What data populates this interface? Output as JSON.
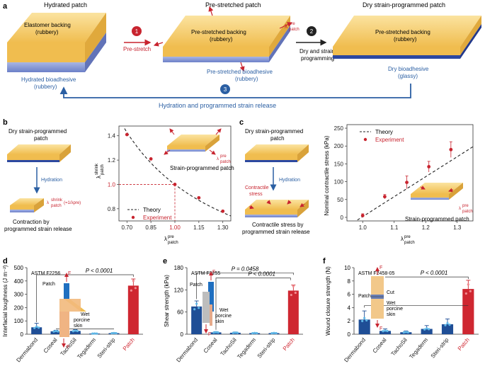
{
  "panel_a": {
    "label": "a",
    "hydrated_title": "Hydrated patch",
    "elastomer_backing": "Elastomer backing",
    "rubbery1": "(rubbery)",
    "hydrated_bioadhesive": "Hydrated bioadhesive",
    "rubbery2": "(rubbery)",
    "step1": "1",
    "prestretch": "Pre-stretch",
    "prestretched_title": "Pre-stretched patch",
    "prestretched_backing": "Pre-stretched backing",
    "rubbery3": "(rubbery)",
    "lambda_pre": "λ",
    "lambda_pre_sup": "pre",
    "lambda_pre_sub": "patch",
    "prestretched_bioadhesive": "Pre-stretched bioadhesive",
    "rubbery4": "(rubbery)",
    "step2": "2",
    "dry_strain": "Dry and strain",
    "programming": "programming",
    "dry_title": "Dry strain-programmed patch",
    "dry_backing": "Pre-stretched backing",
    "rubbery5": "(rubbery)",
    "dry_bioadhesive": "Dry bioadhesive",
    "glassy": "(glassy)",
    "step3": "3",
    "hydration_release": "Hydration and programmed strain release"
  },
  "panel_b": {
    "label": "b",
    "title1": "Dry strain-programmed",
    "title2": "patch",
    "hydration": "Hydration",
    "contraction1": "Contraction by",
    "contraction2": "programmed strain release",
    "inset_label": "Strain-programmed patch",
    "legend_theory": "Theory",
    "legend_experiment": "Experiment"
  },
  "panel_c": {
    "label": "c",
    "title1": "Dry strain-programmed",
    "title2": "patch",
    "hydration": "Hydration",
    "contractile1": "Contractile",
    "contractile2": "stress",
    "caption1": "Contractile stress by",
    "caption2": "programmed strain release",
    "inset_label": "Strain-programmed patch",
    "legend_theory": "Theory",
    "legend_experiment": "Experiment"
  },
  "chart_data": [
    {
      "type": "scatter",
      "panel": "b",
      "xlabel": "λ pre patch",
      "ylabel": "λ shrink patch",
      "xlim": [
        0.65,
        1.35
      ],
      "ylim": [
        0.7,
        1.48
      ],
      "xticks": [
        "0.70",
        "0.85",
        "1.00",
        "1.15",
        "1.30"
      ],
      "yticks": [
        "0.8",
        "1.0",
        "1.2",
        "1.4"
      ],
      "x": [
        0.7,
        0.85,
        1.0,
        1.15,
        1.3
      ],
      "y": [
        1.41,
        1.21,
        1.0,
        0.89,
        0.78
      ],
      "theory": "1/x"
    },
    {
      "type": "scatter",
      "panel": "c",
      "xlabel": "λ pre patch",
      "ylabel": "Nominal contractile stress (kPa)",
      "xlim": [
        0.95,
        1.35
      ],
      "ylim": [
        -10,
        260
      ],
      "xticks": [
        "1.0",
        "1.1",
        "1.2",
        "1.3"
      ],
      "yticks": [
        "0",
        "50",
        "100",
        "150",
        "200",
        "250"
      ],
      "x": [
        1.0,
        1.07,
        1.14,
        1.21,
        1.28
      ],
      "y": [
        5,
        58,
        98,
        142,
        190
      ],
      "err": [
        5,
        6,
        18,
        15,
        22
      ]
    },
    {
      "type": "bar",
      "panel": "d",
      "title": "ASTM F2256",
      "ylabel": "Interfacial toughness (J m⁻²)",
      "ylim": [
        0,
        500
      ],
      "yticks": [
        "0",
        "100",
        "200",
        "300",
        "400",
        "500"
      ],
      "categories": [
        "Dermabond",
        "Coseal",
        "TachoSil",
        "Tegaderm",
        "Steri-strip",
        "Patch"
      ],
      "values": [
        52,
        22,
        25,
        5,
        8,
        365
      ],
      "err": [
        30,
        8,
        10,
        3,
        4,
        50
      ],
      "pvalue": "P < 0.0001"
    },
    {
      "type": "bar",
      "panel": "e",
      "title": "ASTM F2255",
      "ylabel": "Shear strength (kPa)",
      "ylim": [
        0,
        180
      ],
      "yticks": [
        "0",
        "60",
        "120",
        "180"
      ],
      "categories": [
        "Dermabond",
        "Coseal",
        "TachoSil",
        "Tegaderm",
        "Steri-strip",
        "Patch"
      ],
      "values": [
        75,
        5,
        4,
        3,
        3,
        118
      ],
      "err": [
        15,
        2,
        2,
        1,
        1,
        15
      ],
      "pvalues": [
        "P = 0.0458",
        "P < 0.0001"
      ]
    },
    {
      "type": "bar",
      "panel": "f",
      "title": "ASTM F2458-05",
      "ylabel": "Wound closure strength (N)",
      "ylim": [
        0,
        10
      ],
      "yticks": [
        "0",
        "2",
        "4",
        "6",
        "8",
        "10"
      ],
      "categories": [
        "Dermabond",
        "Coseal",
        "TachoSil",
        "Tegaderm",
        "Steri-strip",
        "Patch"
      ],
      "values": [
        2.2,
        0.5,
        0.3,
        0.8,
        1.5,
        6.8
      ],
      "err": [
        1.3,
        0.3,
        0.2,
        0.5,
        0.8,
        1.3
      ],
      "pvalue": "P < 0.0001"
    }
  ],
  "panel_d": {
    "label": "d",
    "patch": "Patch",
    "F": "F",
    "wet": "Wet",
    "porcine": "porcine",
    "skin": "skin"
  },
  "panel_e": {
    "label": "e",
    "patch": "Patch",
    "F": "F",
    "wet": "Wet",
    "porcine": "porcine",
    "skin": "skin"
  },
  "panel_f": {
    "label": "f",
    "patch": "Patch",
    "cut": "Cut",
    "F": "F",
    "wet": "Wet",
    "porcine": "porcine",
    "skin": "skin"
  },
  "colors": {
    "backing": "#f2c45a",
    "adhesive": "#7b8fd0",
    "red": "#c8242f",
    "blue": "#2b5fa3",
    "bar_blue": "#1f4e96"
  }
}
